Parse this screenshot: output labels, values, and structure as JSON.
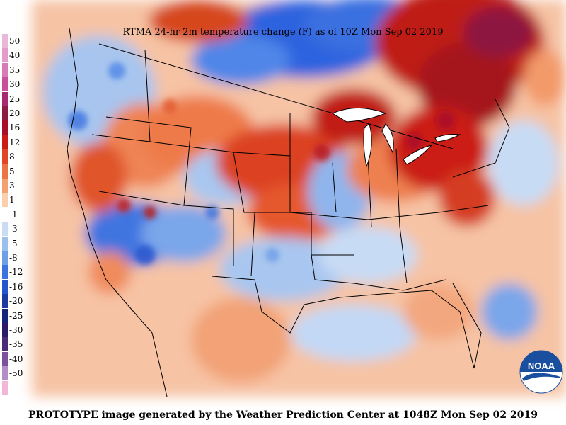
{
  "title": "RTMA 24-hr 2m temperature change (F) as of 10Z Mon Sep 02 2019",
  "footer": "PROTOTYPE image generated by the Weather Prediction Center at 1048Z Mon Sep 02 2019",
  "legend": [
    {
      "label": "50",
      "color": "#e7b8d8"
    },
    {
      "label": "40",
      "color": "#e49ccc"
    },
    {
      "label": "35",
      "color": "#d97ab8"
    },
    {
      "label": "30",
      "color": "#c94f9e"
    },
    {
      "label": "25",
      "color": "#a9286f"
    },
    {
      "label": "20",
      "color": "#8c1c44"
    },
    {
      "label": "16",
      "color": "#a8102a"
    },
    {
      "label": "12",
      "color": "#cb1d16"
    },
    {
      "label": "8",
      "color": "#e04525"
    },
    {
      "label": "5",
      "color": "#ec7444"
    },
    {
      "label": "3",
      "color": "#f3a170"
    },
    {
      "label": "1",
      "color": "#f9cfae"
    },
    {
      "label": "-1",
      "color": "#ffffff"
    },
    {
      "label": "-3",
      "color": "#c8dcf5"
    },
    {
      "label": "-5",
      "color": "#9cc0ee"
    },
    {
      "label": "-8",
      "color": "#6d9ee6"
    },
    {
      "label": "-12",
      "color": "#3d73e0"
    },
    {
      "label": "-16",
      "color": "#2654cc"
    },
    {
      "label": "-20",
      "color": "#1d3aa3"
    },
    {
      "label": "-25",
      "color": "#18237a"
    },
    {
      "label": "-30",
      "color": "#2c1a66"
    },
    {
      "label": "-35",
      "color": "#4c2a78"
    },
    {
      "label": "-40",
      "color": "#7e4f9a"
    },
    {
      "label": "-50",
      "color": "#b58cc4"
    },
    {
      "label": "",
      "color": "#f4b6d6"
    }
  ],
  "logo_text": "NOAA",
  "colors": {
    "warm": "#e04525",
    "cool": "#3d73e0",
    "ocean": "#ffffff"
  }
}
